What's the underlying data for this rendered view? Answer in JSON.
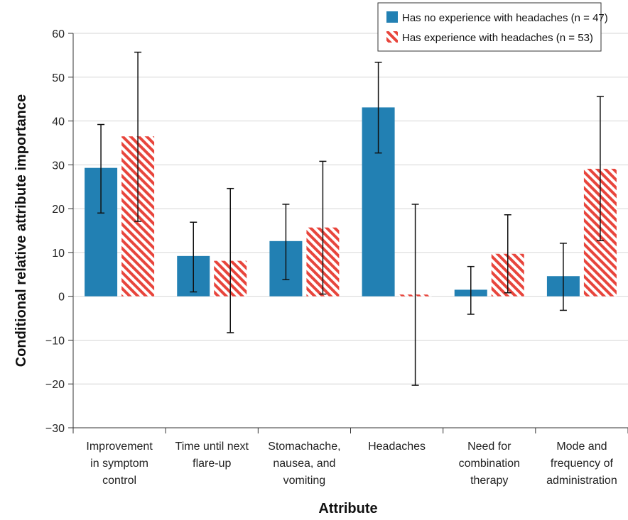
{
  "chart_data": {
    "type": "bar",
    "xlabel": "Attribute",
    "ylabel": "Conditional relative attribute importance",
    "ylim": [
      -30,
      60
    ],
    "yticks": [
      "60",
      "50",
      "40",
      "30",
      "20",
      "10",
      "0",
      "−10",
      "−20",
      "−30"
    ],
    "ytick_values": [
      60,
      50,
      40,
      30,
      20,
      10,
      0,
      -10,
      -20,
      -30
    ],
    "grid": "horizontal",
    "legend_position": "top-right",
    "categories": [
      [
        "Improvement",
        "in symptom",
        "control"
      ],
      [
        "Time until next",
        "flare-up"
      ],
      [
        "Stomachache,",
        "nausea, and",
        "vomiting"
      ],
      [
        "Headaches"
      ],
      [
        "Need for",
        "combination",
        "therapy"
      ],
      [
        "Mode and",
        "frequency of",
        "administration"
      ]
    ],
    "series": [
      {
        "name": "Has no experience with headaches (n = 47)",
        "color": "#2280b3",
        "pattern": "solid",
        "values": [
          29.3,
          9.2,
          12.6,
          43.1,
          1.5,
          4.6
        ],
        "error_low": [
          19.0,
          1.0,
          3.8,
          32.7,
          -4.1,
          -3.2
        ],
        "error_high": [
          39.2,
          16.9,
          21.0,
          53.4,
          6.8,
          12.1
        ]
      },
      {
        "name": "Has experience with headaches (n = 53)",
        "color": "#e8453c",
        "pattern": "diagonal-hatch",
        "values": [
          36.5,
          8.1,
          15.7,
          0.4,
          9.7,
          29.1
        ],
        "error_low": [
          17.1,
          -8.3,
          0.5,
          -20.3,
          0.8,
          12.7
        ],
        "error_high": [
          55.7,
          24.6,
          30.8,
          21.0,
          18.6,
          45.6
        ]
      }
    ]
  }
}
